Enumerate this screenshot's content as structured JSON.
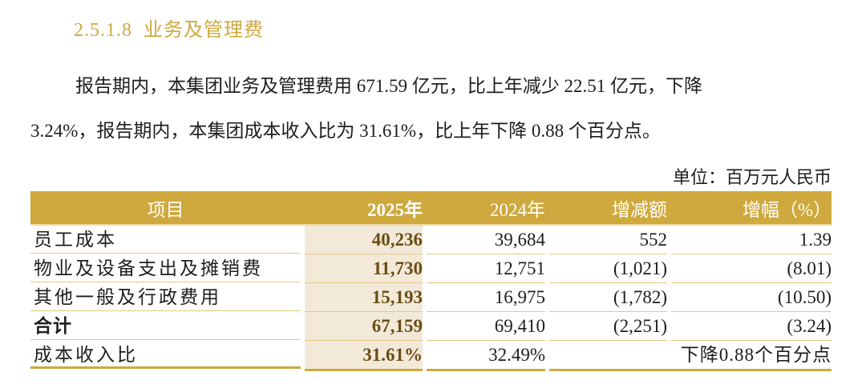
{
  "section": {
    "number": "2.5.1.8",
    "title": "业务及管理费",
    "color": "#cfa93d"
  },
  "paragraph": {
    "line1": "报告期内，本集团业务及管理费用 671.59 亿元，比上年减少 22.51 亿元，下降",
    "line2": "3.24%，报告期内，本集团成本收入比为 31.61%，比上年下降 0.88 个百分点。"
  },
  "unit_label": "单位：百万元人民币",
  "table": {
    "header_color": "#cfa93d",
    "highlight_color": "#f2e9d8",
    "columns": [
      "项目",
      "2025年",
      "2024年",
      "增减额",
      "增幅（%）"
    ],
    "rows": [
      {
        "item": "员工成本",
        "y2025": "40,236",
        "y2024": "39,684",
        "change": "552",
        "pct": "1.39"
      },
      {
        "item": "物业及设备支出及摊销费",
        "y2025": "11,730",
        "y2024": "12,751",
        "change": "(1,021)",
        "pct": "(8.01)"
      },
      {
        "item": "其他一般及行政费用",
        "y2025": "15,193",
        "y2024": "16,975",
        "change": "(1,782)",
        "pct": "(10.50)"
      },
      {
        "item": "合计",
        "y2025": "67,159",
        "y2024": "69,410",
        "change": "(2,251)",
        "pct": "(3.24)"
      },
      {
        "item": "成本收入比",
        "y2025": "31.61%",
        "y2024": "32.49%",
        "note": "下降0.88个百分点"
      }
    ]
  }
}
